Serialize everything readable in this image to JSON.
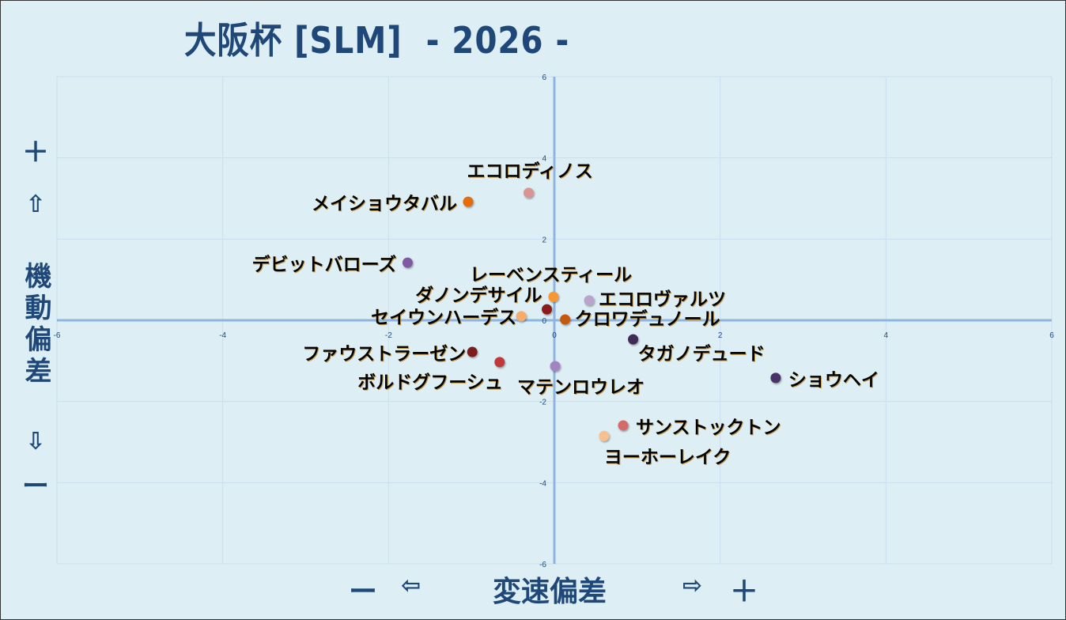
{
  "title": "大阪杯 [SLM]  - 2026 -",
  "y_axis_decor": {
    "plus": "＋",
    "up_arrow": "⇧",
    "label": [
      "機",
      "動",
      "偏",
      "差"
    ],
    "down_arrow": "⇩",
    "minus": "ー"
  },
  "x_axis_decor": {
    "minus": "ー",
    "left_arrow": "⇦",
    "label": "変速偏差",
    "right_arrow": "⇨",
    "plus": "＋"
  },
  "chart_data": {
    "type": "scatter",
    "title": "大阪杯 [SLM]  - 2026 -",
    "xlabel": "変速偏差",
    "ylabel": "機動偏差",
    "xlim": [
      -6,
      6
    ],
    "ylim": [
      -6,
      6
    ],
    "xticks": [
      -6,
      -4,
      -2,
      0,
      2,
      4,
      6
    ],
    "yticks": [
      -6,
      -4,
      -2,
      0,
      2,
      4,
      6
    ],
    "grid": true,
    "points": [
      {
        "label": "エコロディノス",
        "x": -0.31,
        "y": 3.14,
        "color": "#d99594"
      },
      {
        "label": "メイショウタバル",
        "x": -1.04,
        "y": 2.92,
        "color": "#e36c09"
      },
      {
        "label": "デビットバローズ",
        "x": -1.77,
        "y": 1.42,
        "color": "#7f5aa2"
      },
      {
        "label": "レーベンスティール",
        "x": -0.01,
        "y": 0.58,
        "color": "#f79632"
      },
      {
        "label": "エコロヴァルツ",
        "x": 0.42,
        "y": 0.49,
        "color": "#b9a4cc"
      },
      {
        "label": "ダノンデサイル",
        "x": -0.09,
        "y": 0.27,
        "color": "#8c1f1f"
      },
      {
        "label": "セイウンハーデス",
        "x": -0.4,
        "y": 0.1,
        "color": "#f5ad6e"
      },
      {
        "label": "クロワデュノール",
        "x": 0.13,
        "y": 0.02,
        "color": "#c55a11"
      },
      {
        "label": "ファウストラーゼン",
        "x": -0.99,
        "y": -0.78,
        "color": "#7b1a1a"
      },
      {
        "label": "ボルドグフーシュ",
        "x": -0.66,
        "y": -1.03,
        "color": "#c0393b"
      },
      {
        "label": "マテンロウレオ",
        "x": 0.01,
        "y": -1.13,
        "color": "#a285c0"
      },
      {
        "label": "タガノデュード",
        "x": 0.95,
        "y": -0.47,
        "color": "#3f2a56"
      },
      {
        "label": "ショウヘイ",
        "x": 2.67,
        "y": -1.42,
        "color": "#4a3068"
      },
      {
        "label": "サンストックトン",
        "x": 0.83,
        "y": -2.59,
        "color": "#d46a6a"
      },
      {
        "label": "ヨーホーレイク",
        "x": 0.6,
        "y": -2.85,
        "color": "#f9c08e"
      }
    ]
  }
}
